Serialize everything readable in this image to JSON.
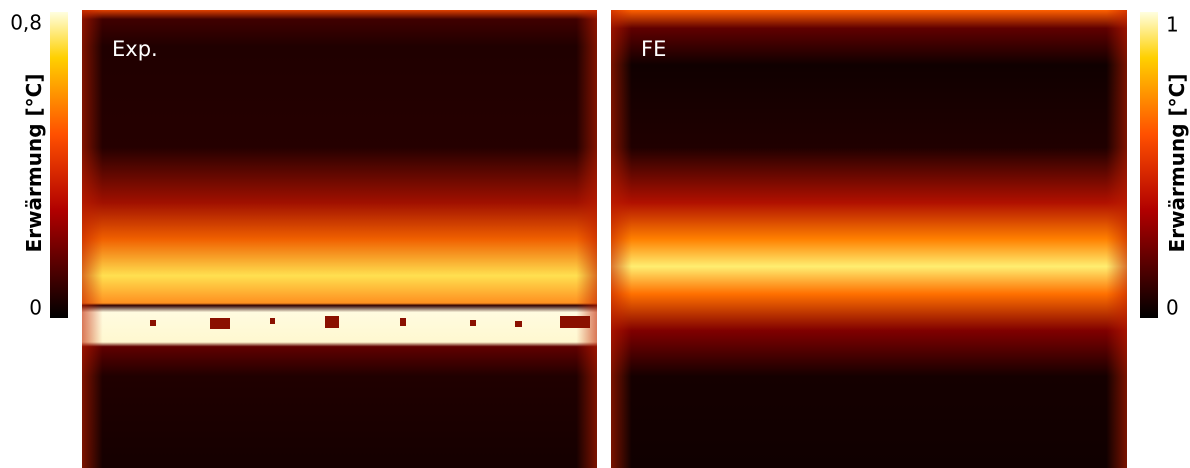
{
  "left_colorbar": {
    "title": "Erwärmung [°C]",
    "ticks": [
      "0,8",
      "0"
    ]
  },
  "panels": [
    {
      "label": "Exp."
    },
    {
      "label": "FE"
    }
  ],
  "right_colorbar": {
    "title": "Erwärmung [°C]",
    "ticks": [
      "1",
      "0"
    ]
  }
}
